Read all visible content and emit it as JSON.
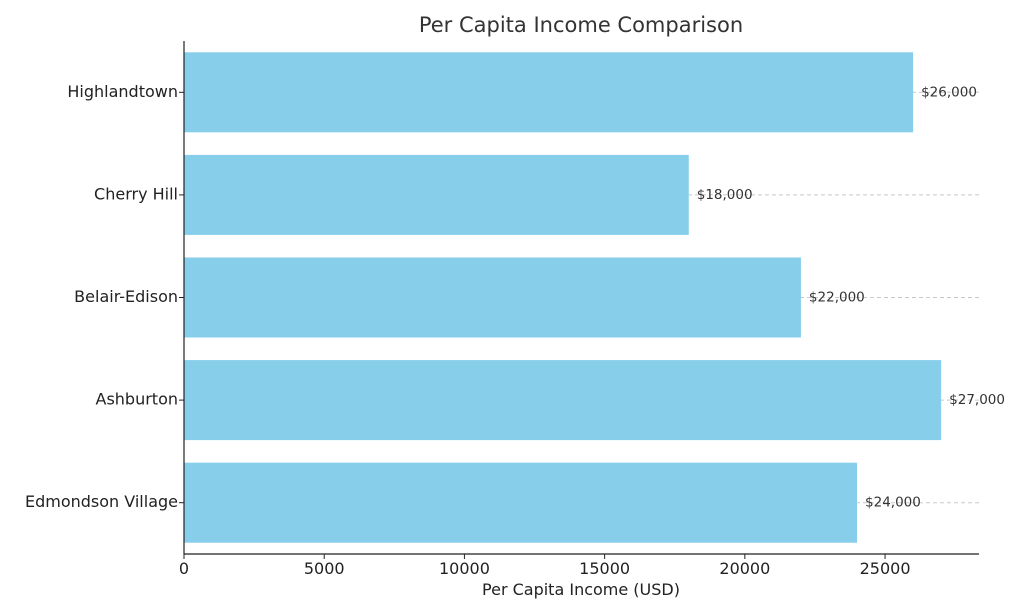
{
  "chart_data": {
    "type": "bar",
    "orientation": "horizontal",
    "title": "Per Capita Income Comparison",
    "xlabel": "Per Capita Income (USD)",
    "ylabel": "",
    "categories": [
      "Highlandtown",
      "Cherry Hill",
      "Belair-Edison",
      "Ashburton",
      "Edmondson Village"
    ],
    "values": [
      26000,
      18000,
      22000,
      27000,
      24000
    ],
    "data_labels": [
      "$26,000",
      "$18,000",
      "$22,000",
      "$27,000",
      "$24,000"
    ],
    "xlim": [
      0,
      28350
    ],
    "xticks": [
      0,
      5000,
      10000,
      15000,
      20000,
      25000
    ],
    "xtick_labels": [
      "0",
      "5000",
      "10000",
      "15000",
      "20000",
      "25000"
    ],
    "grid": "x-dashed",
    "bar_color": "#87CEEB"
  }
}
